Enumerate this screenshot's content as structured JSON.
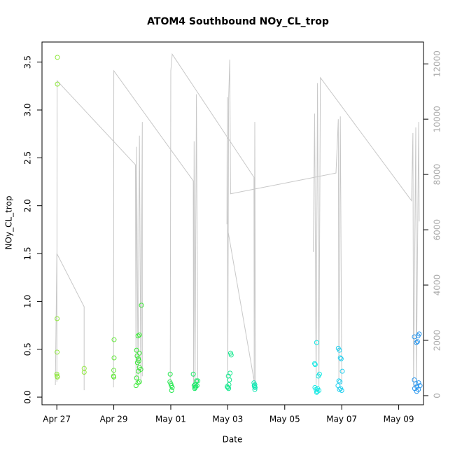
{
  "chart_data": {
    "type": "scatter",
    "title": "ATOM4 Southbound NOy_CL_trop",
    "xlabel": "Date",
    "ylabel": "NOy_CL_trop",
    "xlim": [
      -0.52,
      12.87
    ],
    "ylim": [
      -0.08,
      3.71
    ],
    "y2lim": [
      -330,
      12790
    ],
    "xticks": [
      {
        "value": 0,
        "label": "Apr 27"
      },
      {
        "value": 2,
        "label": "Apr 29"
      },
      {
        "value": 4,
        "label": "May 01"
      },
      {
        "value": 6,
        "label": "May 03"
      },
      {
        "value": 8,
        "label": "May 05"
      },
      {
        "value": 10,
        "label": "May 07"
      },
      {
        "value": 12,
        "label": "May 09"
      }
    ],
    "yticks": [
      {
        "value": 0,
        "label": "0.0"
      },
      {
        "value": 0.5,
        "label": "0.5"
      },
      {
        "value": 1,
        "label": "1.0"
      },
      {
        "value": 1.5,
        "label": "1.5"
      },
      {
        "value": 2,
        "label": "2.0"
      },
      {
        "value": 2.5,
        "label": "2.5"
      },
      {
        "value": 3,
        "label": "3.0"
      },
      {
        "value": 3.5,
        "label": "3.5"
      }
    ],
    "y2ticks": [
      0,
      2000,
      4000,
      6000,
      8000,
      10000,
      12000
    ],
    "grid": false,
    "series": [
      {
        "type": "line",
        "axis": "y2",
        "color": "#c8c8c8",
        "x": [
          -0.05,
          0,
          0.96,
          0.96,
          null,
          0,
          0.01,
          2.76,
          2.78,
          2.8,
          2.85,
          2.9,
          2.95,
          3.0,
          3.0,
          null,
          1.99,
          2.0,
          4.79,
          4.8,
          4.82,
          4.85,
          4.9,
          4.95,
          null,
          3.98,
          4.0,
          4.05,
          6.92,
          6.93,
          6.95,
          6.97,
          null,
          5.97,
          5.98,
          6.0,
          6.03,
          6.07,
          6.1,
          9.8,
          9.88,
          9.9,
          9.95,
          10.0,
          null,
          6.0,
          6.95,
          null,
          9.0,
          9.05,
          9.1,
          9.15,
          9.2,
          9.25,
          12.45,
          12.5,
          12.52,
          12.6,
          12.62,
          12.7,
          12.72
        ],
        "values": [
          380,
          5140,
          3215,
          200,
          null,
          500,
          11390,
          8350,
          500,
          9000,
          600,
          9400,
          500,
          9900,
          700,
          null,
          300,
          11750,
          7770,
          300,
          9200,
          300,
          10900,
          400,
          null,
          400,
          11750,
          12350,
          7900,
          400,
          9900,
          400,
          null,
          6200,
          10800,
          400,
          10700,
          12150,
          7300,
          8050,
          10000,
          600,
          10100,
          400,
          null,
          6000,
          400,
          null,
          5200,
          10200,
          400,
          11300,
          300,
          11500,
          7050,
          9500,
          300,
          9700,
          400,
          9900,
          6300
        ]
      },
      {
        "color": "#8ee83a",
        "x": [
          0.02,
          0.02,
          0.01,
          0.01,
          0.0,
          0.01,
          0.02,
          0.96,
          0.96
        ],
        "values": [
          3.55,
          3.27,
          0.82,
          0.47,
          0.24,
          0.22,
          0.21,
          0.3,
          0.26
        ]
      },
      {
        "color": "#62e838",
        "x": [
          2.01,
          2.01,
          2.0,
          1.99,
          2.0
        ],
        "values": [
          0.6,
          0.41,
          0.28,
          0.22,
          0.21
        ]
      },
      {
        "color": "#3ce838",
        "x": [
          2.97,
          2.9,
          2.85,
          2.8,
          2.9,
          2.82,
          2.86,
          2.88,
          2.83,
          2.9,
          2.95,
          2.86,
          2.8,
          2.9,
          2.78,
          2.85
        ],
        "values": [
          0.96,
          0.65,
          0.64,
          0.49,
          0.46,
          0.43,
          0.4,
          0.38,
          0.36,
          0.31,
          0.29,
          0.27,
          0.2,
          0.16,
          0.12,
          0.15
        ]
      },
      {
        "color": "#24e84e",
        "x": [
          3.98,
          3.97,
          4.0,
          4.02,
          4.05,
          4.03
        ],
        "values": [
          0.24,
          0.16,
          0.14,
          0.12,
          0.1,
          0.07
        ]
      },
      {
        "color": "#18e866",
        "x": [
          4.79,
          4.95,
          4.9,
          4.85,
          4.82,
          4.88,
          4.86,
          4.84,
          4.92
        ],
        "values": [
          0.24,
          0.17,
          0.17,
          0.13,
          0.12,
          0.11,
          0.1,
          0.09,
          0.12
        ]
      },
      {
        "color": "#14e88e",
        "x": [
          6.1,
          6.12,
          6.08,
          6.02,
          6.06,
          6.04,
          5.98,
          6.0,
          6.03
        ],
        "values": [
          0.46,
          0.44,
          0.25,
          0.22,
          0.18,
          0.13,
          0.11,
          0.1,
          0.09
        ]
      },
      {
        "color": "#14e8b4",
        "x": [
          6.92,
          6.95,
          6.93,
          6.94,
          6.96,
          6.95
        ],
        "values": [
          0.15,
          0.13,
          0.12,
          0.11,
          0.1,
          0.08
        ]
      },
      {
        "color": "#18e8e4",
        "x": [
          9.12,
          9.05,
          9.07,
          9.22,
          9.18,
          9.06,
          9.15,
          9.1,
          9.2,
          9.14,
          9.12
        ],
        "values": [
          0.57,
          0.35,
          0.34,
          0.24,
          0.22,
          0.1,
          0.09,
          0.08,
          0.07,
          0.06,
          0.05
        ]
      },
      {
        "color": "#22cfee",
        "x": [
          9.88,
          9.92,
          9.95,
          9.98,
          10.02,
          9.9,
          9.94,
          9.87,
          9.96,
          9.92,
          10.0
        ],
        "values": [
          0.51,
          0.49,
          0.41,
          0.4,
          0.27,
          0.17,
          0.16,
          0.12,
          0.09,
          0.08,
          0.07
        ]
      },
      {
        "color": "#2896ee",
        "x": [
          12.72,
          12.68,
          12.55,
          12.66,
          12.62,
          12.55,
          12.7,
          12.6,
          12.75,
          12.64,
          12.56,
          12.69,
          12.63
        ],
        "values": [
          0.66,
          0.64,
          0.63,
          0.58,
          0.57,
          0.18,
          0.15,
          0.14,
          0.12,
          0.11,
          0.09,
          0.08,
          0.06
        ]
      }
    ]
  }
}
